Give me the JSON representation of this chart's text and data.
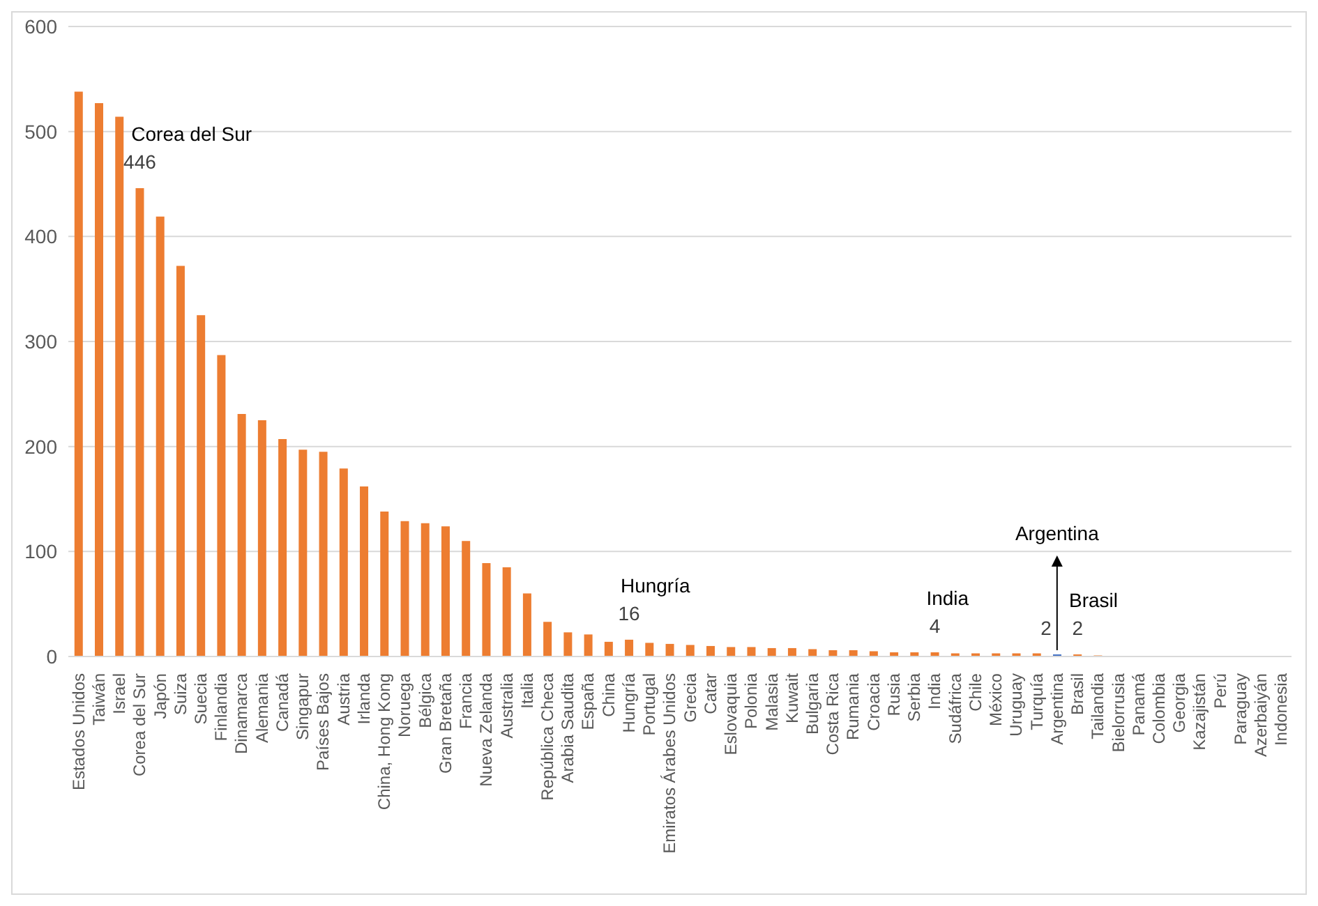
{
  "chart_data": {
    "type": "bar",
    "categories": [
      "Estados Unidos",
      "Taiwán",
      "Israel",
      "Corea del Sur",
      "Japón",
      "Suiza",
      "Suecia",
      "Finlandia",
      "Dinamarca",
      "Alemania",
      "Canadá",
      "Singapur",
      "Países Bajos",
      "Austria",
      "Irlanda",
      "China, Hong Kong",
      "Noruega",
      "Bélgica",
      "Gran Bretaña",
      "Francia",
      "Nueva Zelanda",
      "Australia",
      "Italia",
      "República Checa",
      "Arabia Saudita",
      "España",
      "China",
      "Hungría",
      "Portugal",
      "Emiratos Árabes Unidos",
      "Grecia",
      "Catar",
      "Eslovaquia",
      "Polonia",
      "Malasia",
      "Kuwait",
      "Bulgaria",
      "Costa Rica",
      "Rumania",
      "Croacia",
      "Rusia",
      "Serbia",
      "India",
      "Sudáfrica",
      "Chile",
      "México",
      "Uruguay",
      "Turquía",
      "Argentina",
      "Brasil",
      "Tailandia",
      "Bielorrusia",
      "Panamá",
      "Colombia",
      "Georgia",
      "Kazajistán",
      "Perú",
      "Paraguay",
      "Azerbaiyán",
      "Indonesia"
    ],
    "values": [
      538,
      527,
      514,
      446,
      419,
      372,
      325,
      287,
      231,
      225,
      207,
      197,
      195,
      179,
      162,
      138,
      129,
      127,
      124,
      110,
      89,
      85,
      60,
      33,
      23,
      21,
      14,
      16,
      13,
      12,
      11,
      10,
      9,
      9,
      8,
      8,
      7,
      6,
      6,
      5,
      4,
      4,
      4,
      3,
      3,
      3,
      3,
      3,
      2,
      2,
      1,
      0,
      0,
      0,
      0,
      0,
      0,
      0,
      0,
      0
    ],
    "colors": [
      "#ed7d31",
      "#ed7d31",
      "#ed7d31",
      "#ed7d31",
      "#ed7d31",
      "#ed7d31",
      "#ed7d31",
      "#ed7d31",
      "#ed7d31",
      "#ed7d31",
      "#ed7d31",
      "#ed7d31",
      "#ed7d31",
      "#ed7d31",
      "#ed7d31",
      "#ed7d31",
      "#ed7d31",
      "#ed7d31",
      "#ed7d31",
      "#ed7d31",
      "#ed7d31",
      "#ed7d31",
      "#ed7d31",
      "#ed7d31",
      "#ed7d31",
      "#ed7d31",
      "#ed7d31",
      "#ed7d31",
      "#ed7d31",
      "#ed7d31",
      "#ed7d31",
      "#ed7d31",
      "#ed7d31",
      "#ed7d31",
      "#ed7d31",
      "#ed7d31",
      "#ed7d31",
      "#ed7d31",
      "#ed7d31",
      "#ed7d31",
      "#ed7d31",
      "#ed7d31",
      "#ed7d31",
      "#ed7d31",
      "#ed7d31",
      "#ed7d31",
      "#ed7d31",
      "#ed7d31",
      "#4472c4",
      "#ed7d31",
      "#ed7d31",
      "#ed7d31",
      "#ed7d31",
      "#ed7d31",
      "#ed7d31",
      "#ed7d31",
      "#ed7d31",
      "#ed7d31",
      "#ed7d31",
      "#ed7d31"
    ],
    "value_labels": [
      null,
      null,
      null,
      "446",
      null,
      null,
      null,
      null,
      null,
      null,
      null,
      null,
      null,
      null,
      null,
      null,
      null,
      null,
      null,
      null,
      null,
      null,
      null,
      null,
      null,
      null,
      null,
      "16",
      null,
      null,
      null,
      null,
      null,
      null,
      null,
      null,
      null,
      null,
      null,
      null,
      null,
      null,
      "4",
      null,
      null,
      null,
      null,
      null,
      "2",
      "2",
      null,
      null,
      null,
      null,
      null,
      null,
      null,
      null,
      null,
      null
    ],
    "annotations": [
      {
        "text": "Corea del Sur",
        "x": "Corea del Sur",
        "y": 446
      },
      {
        "text": "Hungría",
        "x": "Hungría",
        "y": 16
      },
      {
        "text": "India",
        "x": "India",
        "y": 4
      },
      {
        "text": "Argentina",
        "x": "Argentina",
        "y": 2
      },
      {
        "text": "Brasil",
        "x": "Brasil",
        "y": 2
      }
    ],
    "ylim": [
      0,
      600
    ],
    "yticks": [
      0,
      100,
      200,
      300,
      400,
      500,
      600
    ],
    "grid": "y"
  }
}
